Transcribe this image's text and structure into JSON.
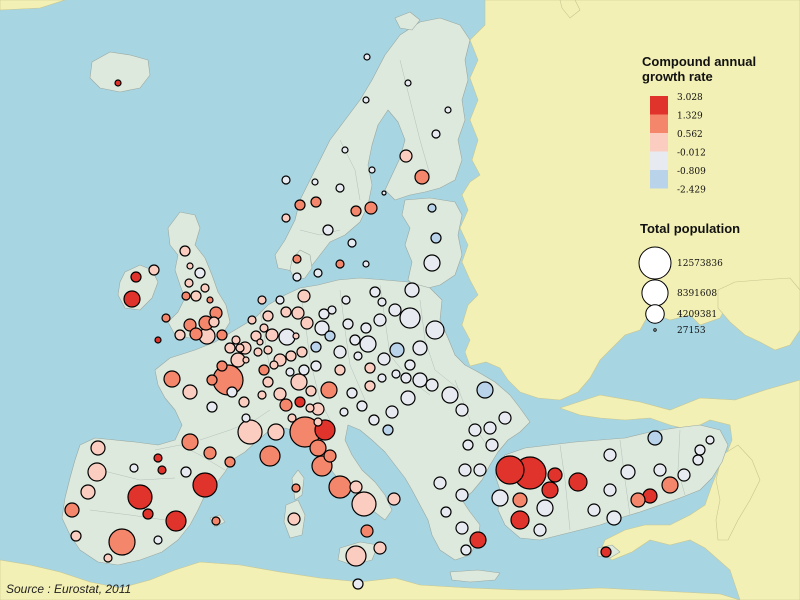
{
  "legend": {
    "growth_title_line1": "Compound annual",
    "growth_title_line2": "growth rate",
    "growth_classes": [
      {
        "label": "3.028",
        "color": "#e0332b"
      },
      {
        "label": "1.329",
        "color": "#f4866b"
      },
      {
        "label": "0.562",
        "color": "#fbcdc0"
      },
      {
        "label": "-0.012",
        "color": "#e8eaf2"
      },
      {
        "label": "-0.809",
        "color": "#b9d3ea"
      },
      {
        "label": "-2.429",
        "color": "#b9d3ea"
      }
    ],
    "population_title": "Total population",
    "population_sizes": [
      {
        "label": "12573836",
        "value": 12573836
      },
      {
        "label": "8391608",
        "value": 8391608
      },
      {
        "label": "4209381",
        "value": 4209381
      },
      {
        "label": "27153",
        "value": 27153
      }
    ]
  },
  "source": "Source : Eurostat, 2011",
  "colors": {
    "sea": "#a8d5e2",
    "land_data": "#dde9dd",
    "land_other": "#f2f0b4",
    "border": "#9aa8a0"
  }
}
